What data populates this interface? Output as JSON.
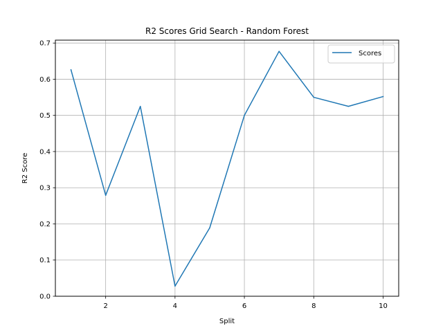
{
  "chart_data": {
    "type": "line",
    "title": "R2 Scores Grid Search - Random Forest",
    "xlabel": "Split",
    "ylabel": "R2 Score",
    "x": [
      1,
      2,
      3,
      4,
      5,
      6,
      7,
      8,
      9,
      10
    ],
    "series": [
      {
        "name": "Scores",
        "color": "#1f77b4",
        "values": [
          0.626,
          0.279,
          0.525,
          0.028,
          0.189,
          0.5,
          0.677,
          0.55,
          0.525,
          0.552
        ]
      }
    ],
    "xlim": [
      0.55,
      10.45
    ],
    "ylim": [
      0.0,
      0.708
    ],
    "xticks": [
      2,
      4,
      6,
      8,
      10
    ],
    "yticks": [
      0.0,
      0.1,
      0.2,
      0.3,
      0.4,
      0.5,
      0.6,
      0.7
    ],
    "xtick_labels": [
      "2",
      "4",
      "6",
      "8",
      "10"
    ],
    "ytick_labels": [
      "0.0",
      "0.1",
      "0.2",
      "0.3",
      "0.4",
      "0.5",
      "0.6",
      "0.7"
    ],
    "grid": true,
    "legend_position": "top-right"
  }
}
